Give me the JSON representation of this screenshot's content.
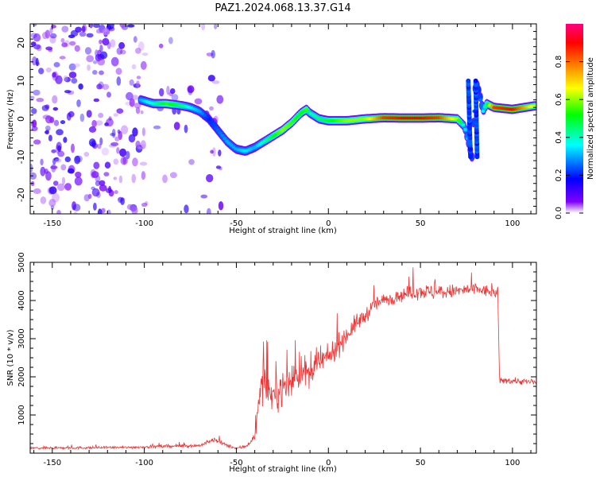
{
  "title": "PAZ1.2024.068.13.37.G14",
  "chart_data": [
    {
      "type": "heatmap",
      "xlabel": "Height of straight line (km)",
      "ylabel": "Frequency (Hz)",
      "xlim": [
        -162,
        113
      ],
      "ylim": [
        -25,
        25
      ],
      "xticks": [
        -150,
        -100,
        -50,
        0,
        50,
        100
      ],
      "yticks": [
        -20,
        -10,
        0,
        10,
        20
      ],
      "colorbar": {
        "label": "Normalized spectral amplitude",
        "range": [
          0,
          1
        ],
        "ticks": [
          "0.0",
          "0.2",
          "0.4",
          "0.6",
          "0.8"
        ],
        "colormap": [
          "#ffffff",
          "#8000ff",
          "#0000ff",
          "#00ffff",
          "#00ff00",
          "#ffff00",
          "#ff8000",
          "#ff0000",
          "#ff0080"
        ]
      },
      "ridge": {
        "x": [
          -102,
          -95,
          -88,
          -80,
          -75,
          -70,
          -65,
          -60,
          -55,
          -50,
          -45,
          -40,
          -35,
          -30,
          -25,
          -20,
          -15,
          -12,
          -10,
          -5,
          0,
          10,
          20,
          30,
          40,
          50,
          60,
          70,
          74,
          76,
          78,
          80,
          82,
          84,
          86,
          90,
          100,
          113
        ],
        "y": [
          5,
          4,
          4,
          3.5,
          3,
          2,
          0,
          -3,
          -6,
          -8,
          -8.5,
          -7.5,
          -6,
          -4.5,
          -3,
          -1,
          1.5,
          2.5,
          1.5,
          0,
          -0.5,
          -0.5,
          0,
          0.3,
          0.2,
          0.2,
          0.3,
          0,
          -2,
          -6,
          -10,
          10,
          7,
          2,
          4,
          3,
          2.5,
          3.5
        ],
        "amplitude": [
          0.3,
          0.4,
          0.55,
          0.45,
          0.35,
          0.3,
          0.2,
          0.25,
          0.3,
          0.3,
          0.35,
          0.3,
          0.4,
          0.5,
          0.6,
          0.55,
          0.5,
          0.55,
          0.4,
          0.45,
          0.5,
          0.6,
          0.6,
          0.85,
          0.9,
          0.9,
          0.85,
          0.6,
          0.35,
          0.3,
          0.25,
          0.25,
          0.2,
          0.35,
          0.5,
          0.85,
          0.9,
          0.6
        ]
      }
    },
    {
      "type": "line",
      "xlabel": "Height of straight line (km)",
      "ylabel": "SNR (10 * v/v)",
      "xlim": [
        -162,
        113
      ],
      "ylim": [
        0,
        5000
      ],
      "xticks": [
        -150,
        -100,
        -50,
        0,
        50,
        100
      ],
      "yticks": [
        1000,
        2000,
        3000,
        4000,
        5000
      ],
      "color": "#ee3333",
      "envelope": {
        "x": [
          -162,
          -110,
          -70,
          -62,
          -55,
          -50,
          -45,
          -40,
          -37,
          -35,
          -30,
          -25,
          -20,
          -15,
          -10,
          -5,
          0,
          5,
          10,
          15,
          20,
          25,
          30,
          40,
          50,
          60,
          70,
          80,
          90,
          92,
          93,
          100,
          113
        ],
        "mean": [
          130,
          150,
          200,
          350,
          200,
          120,
          180,
          400,
          1700,
          1800,
          1500,
          1700,
          1900,
          2200,
          2000,
          2400,
          2500,
          2800,
          3100,
          3400,
          3600,
          3900,
          4000,
          4150,
          4250,
          4200,
          4250,
          4300,
          4200,
          4200,
          1900,
          1900,
          1850
        ],
        "spread": [
          60,
          60,
          80,
          120,
          80,
          60,
          100,
          200,
          600,
          800,
          700,
          800,
          800,
          800,
          700,
          600,
          500,
          500,
          450,
          400,
          350,
          350,
          300,
          300,
          350,
          350,
          300,
          300,
          250,
          250,
          150,
          150,
          150
        ]
      }
    }
  ]
}
